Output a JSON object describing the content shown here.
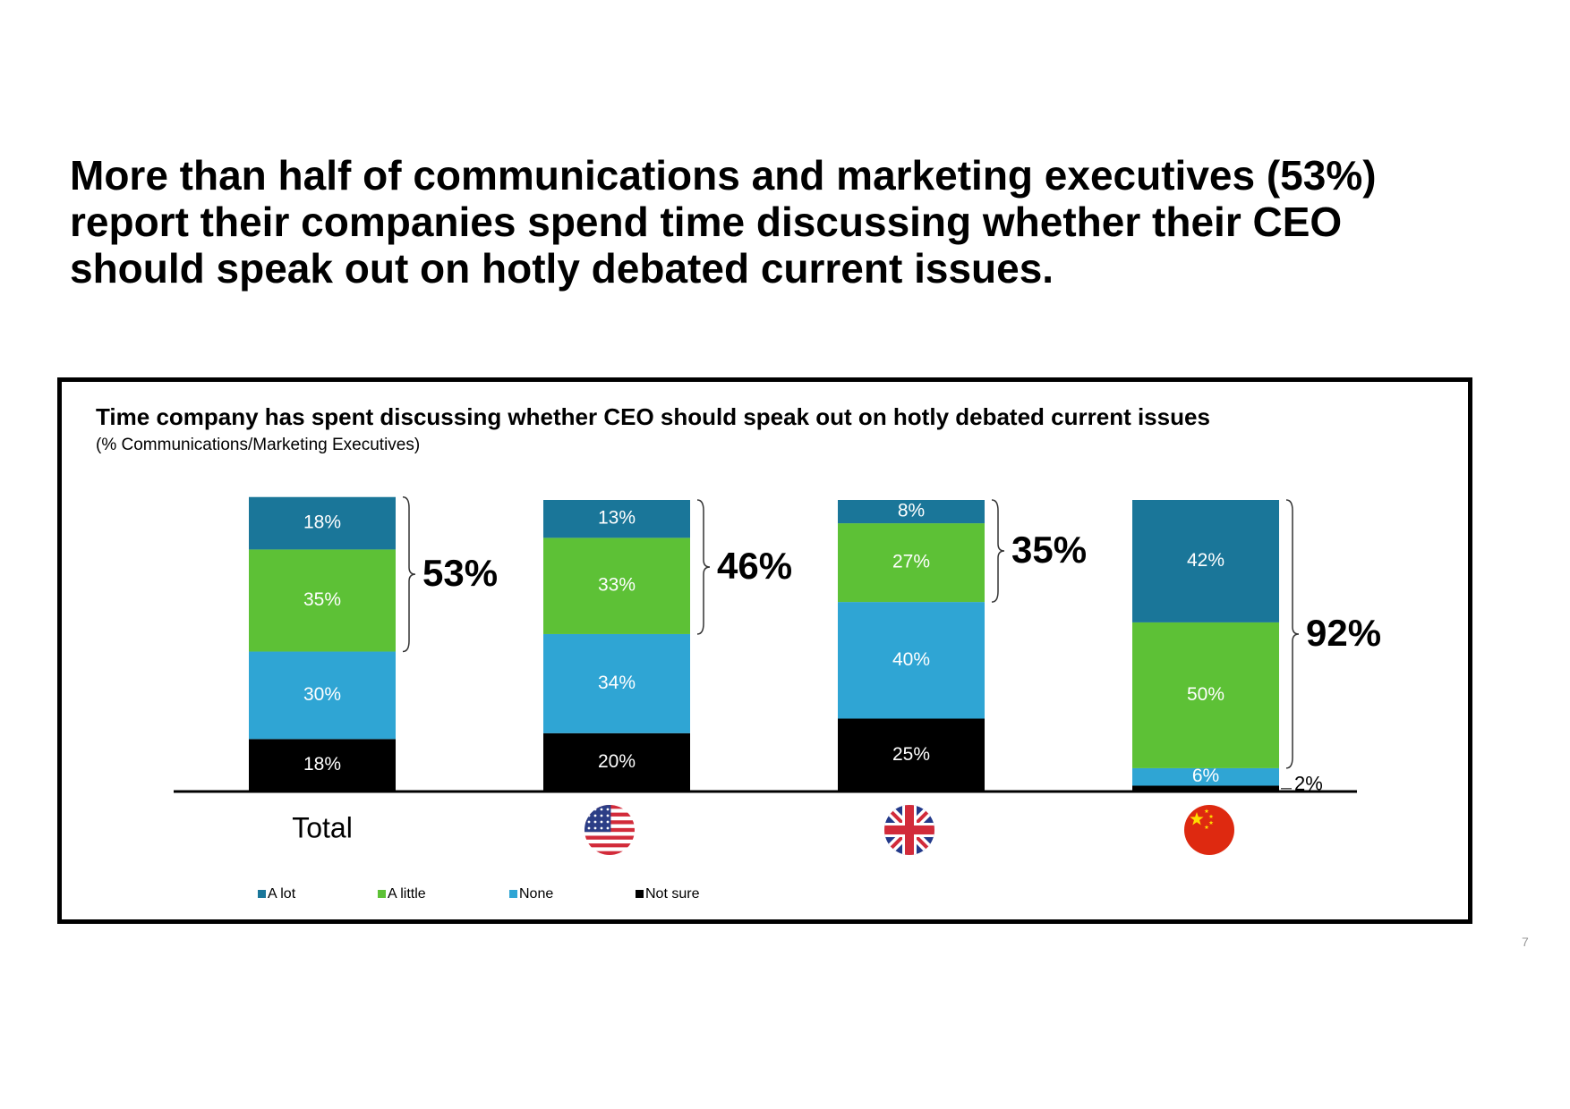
{
  "headline": "More than half of communications and marketing executives (53%) report their companies spend time discussing whether their CEO should speak out on hotly debated current issues.",
  "page_number": "7",
  "colors": {
    "a_lot": "#1A7699",
    "a_little": "#5DC136",
    "none": "#2FA5D4",
    "not_sure": "#000000"
  },
  "chart_data": {
    "type": "bar",
    "stacked": true,
    "title": "Time company has spent discussing whether CEO should speak out on hotly debated current issues",
    "subtitle": "(% Communications/Marketing Executives)",
    "categories": [
      "Total",
      "United States",
      "United Kingdom",
      "China"
    ],
    "category_display": [
      "text",
      "us-flag",
      "uk-flag",
      "china-flag"
    ],
    "series": [
      {
        "name": "Not sure",
        "color": "#000000",
        "values": [
          18,
          20,
          25,
          2
        ],
        "labels": [
          "18%",
          "20%",
          "25%",
          "2%"
        ]
      },
      {
        "name": "None",
        "color": "#2FA5D4",
        "values": [
          30,
          34,
          40,
          6
        ],
        "labels": [
          "30%",
          "34%",
          "40%",
          "6%"
        ]
      },
      {
        "name": "A little",
        "color": "#5DC136",
        "values": [
          35,
          33,
          27,
          50
        ],
        "labels": [
          "35%",
          "33%",
          "27%",
          "50%"
        ]
      },
      {
        "name": "A lot",
        "color": "#1A7699",
        "values": [
          18,
          13,
          8,
          42
        ],
        "labels": [
          "18%",
          "13%",
          "8%",
          "42%"
        ]
      }
    ],
    "brackets": [
      {
        "label": "53%",
        "series": [
          "A lot",
          "A little"
        ]
      },
      {
        "label": "46%",
        "series": [
          "A lot",
          "A little"
        ]
      },
      {
        "label": "35%",
        "series": [
          "A lot",
          "A little"
        ]
      },
      {
        "label": "92%",
        "series": [
          "A lot",
          "A little"
        ]
      }
    ],
    "legend": [
      "A lot",
      "A little",
      "None",
      "Not sure"
    ],
    "legend_position": "bottom-left",
    "ylim": [
      0,
      100
    ],
    "xlabel": "",
    "ylabel": ""
  }
}
